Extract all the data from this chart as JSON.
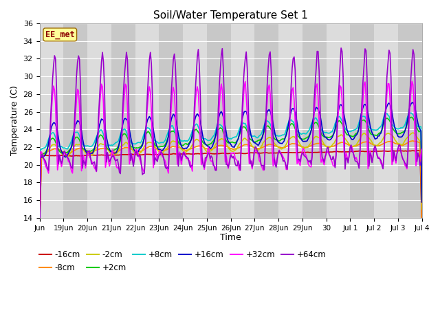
{
  "title": "Soil/Water Temperature Set 1",
  "xlabel": "Time",
  "ylabel": "Temperature (C)",
  "ylim": [
    14,
    36
  ],
  "yticks": [
    14,
    16,
    18,
    20,
    22,
    24,
    26,
    28,
    30,
    32,
    34,
    36
  ],
  "watermark": "EE_met",
  "xtick_labels": [
    "Jun",
    "19Jun",
    "20Jun",
    "21Jun",
    "22Jun",
    "23Jun",
    "24Jun",
    "25Jun",
    "26Jun",
    "27Jun",
    "28Jun",
    "29Jun",
    "30",
    "Jul 1",
    "Jul 2",
    "Jul 3",
    "Jul 4"
  ],
  "series_colors": {
    "-16cm": "#cc0000",
    "-8cm": "#ff8c00",
    "-2cm": "#cccc00",
    "+2cm": "#00cc00",
    "+8cm": "#00cccc",
    "+16cm": "#0000cc",
    "+32cm": "#ff00ff",
    "+64cm": "#9900cc"
  },
  "band_colors": [
    "#dcdcdc",
    "#c8c8c8"
  ],
  "plot_bg": "#dcdcdc",
  "fig_bg": "#ffffff",
  "grid_color": "#ffffff"
}
